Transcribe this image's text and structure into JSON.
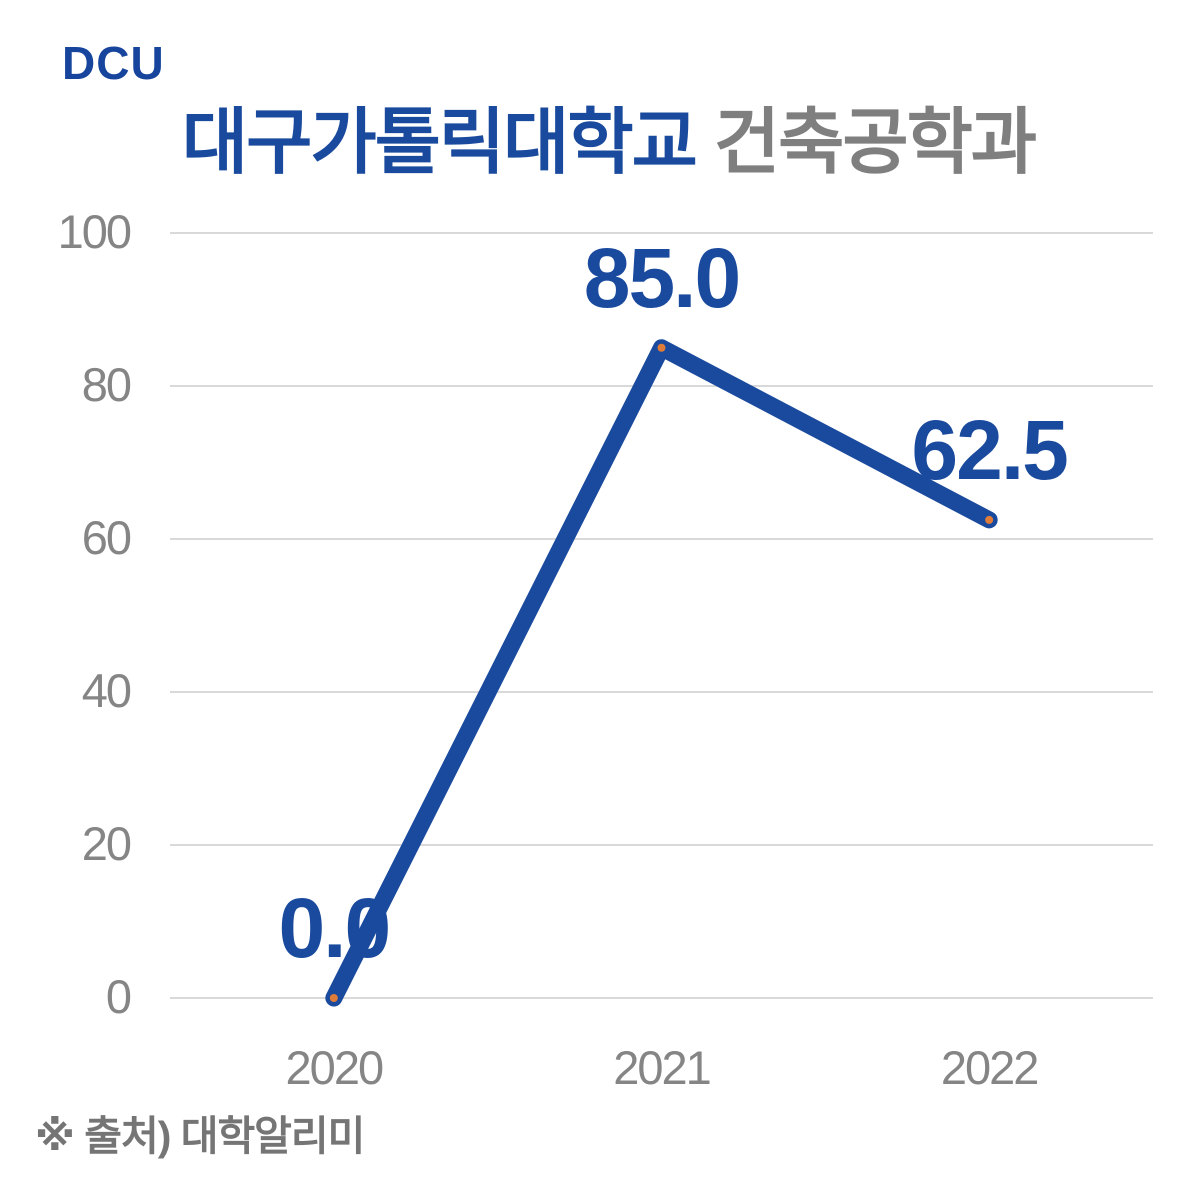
{
  "logo": {
    "text": "DCU"
  },
  "title": {
    "university": "대구가톨릭대학교",
    "department": " 건축공학과"
  },
  "footer": {
    "source": "※ 출처) 대학알리미"
  },
  "colors": {
    "brand_blue": "#17449C",
    "line_blue": "#1A4A9E",
    "marker_orange": "#E07C39",
    "title_gray": "#7F7F7F",
    "axis_gray": "#858585",
    "gridline_gray": "#D9D9D9",
    "footer_gray": "#757575"
  },
  "chart_data": {
    "type": "line",
    "title": "대구가톨릭대학교 건축공학과",
    "categories": [
      "2020",
      "2021",
      "2022"
    ],
    "series": [
      {
        "name": "대구가톨릭대학교 건축공학과",
        "values": [
          0.0,
          85.0,
          62.5
        ]
      }
    ],
    "data_labels": [
      "0.0",
      "85.0",
      "62.5"
    ],
    "xlabel": "",
    "ylabel": "",
    "ylim": [
      0,
      100
    ],
    "y_ticks": [
      0,
      20,
      40,
      60,
      80,
      100
    ],
    "grid": true,
    "legend_position": "none",
    "annotations": "data labels shown above each point"
  }
}
